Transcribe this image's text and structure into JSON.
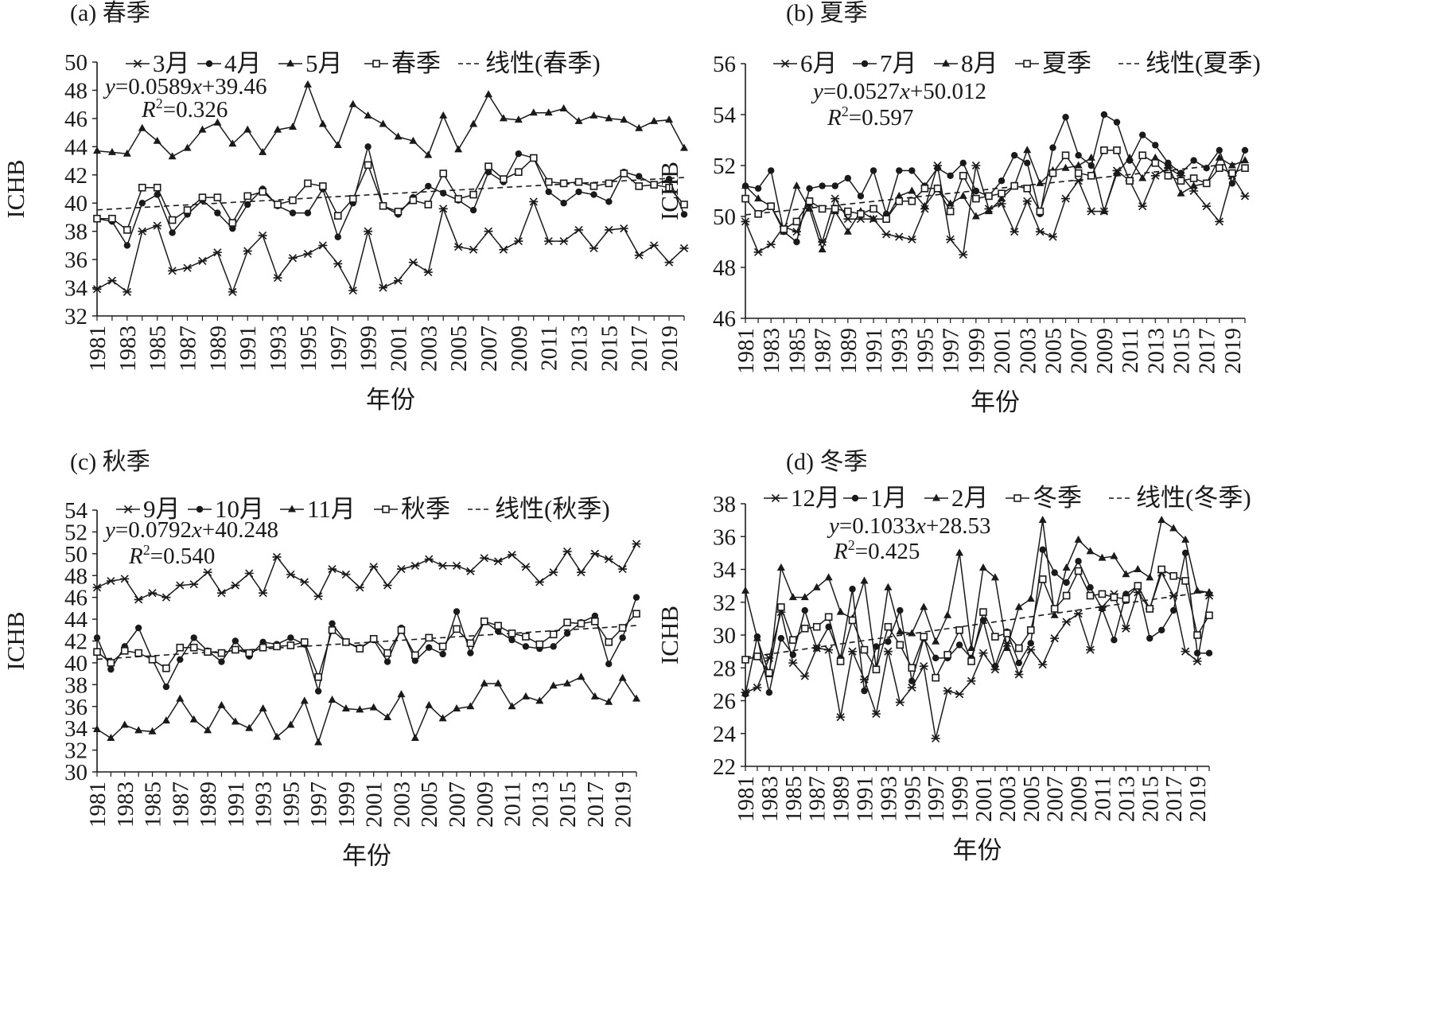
{
  "chart_data": [
    {
      "panel_title": "(a) 春季",
      "type": "line",
      "xlabel": "年份",
      "ylabel": "ICHB",
      "ylim": [
        32,
        50
      ],
      "yticks": [
        32,
        34,
        36,
        38,
        40,
        42,
        44,
        46,
        48,
        50
      ],
      "xtick_labels": [
        "1981",
        "1983",
        "1985",
        "1987",
        "1989",
        "1991",
        "1993",
        "1995",
        "1997",
        "1999",
        "2001",
        "2003",
        "2005",
        "2007",
        "2009",
        "2011",
        "2013",
        "2015",
        "2017",
        "2019"
      ],
      "x": [
        1981,
        1982,
        1983,
        1984,
        1985,
        1986,
        1987,
        1988,
        1989,
        1990,
        1991,
        1992,
        1993,
        1994,
        1995,
        1996,
        1997,
        1998,
        1999,
        2000,
        2001,
        2002,
        2003,
        2004,
        2005,
        2006,
        2007,
        2008,
        2009,
        2010,
        2011,
        2012,
        2013,
        2014,
        2015,
        2016,
        2017,
        2018,
        2019,
        2020
      ],
      "series": [
        {
          "name": "3月",
          "marker": "star",
          "values": [
            33.9,
            34.5,
            33.7,
            38.0,
            38.4,
            35.2,
            35.4,
            35.9,
            36.5,
            33.7,
            36.6,
            37.7,
            34.7,
            36.1,
            36.4,
            37.0,
            35.7,
            33.8,
            38.0,
            34.0,
            34.5,
            35.8,
            35.1,
            39.6,
            36.9,
            36.7,
            38.0,
            36.7,
            37.3,
            40.1,
            37.3,
            37.3,
            38.1,
            36.8,
            38.1,
            38.2,
            36.3,
            37.0,
            35.8,
            36.8
          ]
        },
        {
          "name": "4月",
          "marker": "circle",
          "values": [
            38.9,
            38.7,
            37.0,
            40.0,
            40.6,
            37.9,
            39.2,
            40.2,
            39.3,
            38.2,
            39.9,
            41.0,
            39.8,
            39.3,
            39.3,
            41.0,
            37.6,
            40.0,
            44.0,
            39.8,
            39.2,
            40.4,
            41.2,
            40.7,
            40.2,
            39.5,
            42.2,
            41.5,
            43.5,
            43.2,
            40.8,
            40.0,
            40.8,
            40.6,
            40.1,
            42.2,
            41.9,
            41.3,
            41.7,
            39.2
          ]
        },
        {
          "name": "5月",
          "marker": "triangle",
          "values": [
            43.7,
            43.6,
            43.5,
            45.3,
            44.4,
            43.3,
            43.9,
            45.2,
            45.7,
            44.2,
            45.2,
            43.6,
            45.2,
            45.4,
            48.4,
            45.6,
            44.1,
            47.0,
            46.2,
            45.6,
            44.7,
            44.4,
            43.4,
            46.2,
            43.8,
            45.6,
            47.7,
            46.0,
            45.9,
            46.4,
            46.4,
            46.7,
            45.8,
            46.2,
            46.0,
            45.9,
            45.3,
            45.8,
            45.9,
            43.9
          ]
        },
        {
          "name": "春季",
          "marker": "square",
          "values": [
            38.9,
            38.9,
            38.1,
            41.1,
            41.1,
            38.8,
            39.5,
            40.4,
            40.4,
            38.6,
            40.5,
            40.8,
            39.9,
            40.2,
            41.4,
            41.2,
            39.1,
            40.3,
            42.7,
            39.8,
            39.4,
            40.2,
            39.9,
            42.1,
            40.3,
            40.6,
            42.6,
            41.7,
            42.2,
            43.2,
            41.5,
            41.4,
            41.5,
            41.2,
            41.4,
            42.1,
            41.2,
            41.3,
            41.1,
            39.9
          ]
        }
      ],
      "trend": {
        "name": "线性(春季)",
        "slope": 0.0589,
        "intercept": 39.46
      },
      "equation": {
        "y": "y",
        "rest": "=0.0589",
        "x": "x",
        "tail": "+39.46"
      },
      "r2": {
        "r": "R",
        "sup": "2",
        "value": "=0.326"
      }
    },
    {
      "panel_title": "(b) 夏季",
      "type": "line",
      "xlabel": "年份",
      "ylabel": "ICHB",
      "ylim": [
        46,
        56
      ],
      "yticks": [
        46,
        48,
        50,
        52,
        54,
        56
      ],
      "xtick_labels": [
        "1981",
        "1983",
        "1985",
        "1987",
        "1989",
        "1991",
        "1993",
        "1995",
        "1997",
        "1999",
        "2001",
        "2003",
        "2005",
        "2007",
        "2009",
        "2011",
        "2013",
        "2015",
        "2017",
        "2019"
      ],
      "x": [
        1981,
        1982,
        1983,
        1984,
        1985,
        1986,
        1987,
        1988,
        1989,
        1990,
        1991,
        1992,
        1993,
        1994,
        1995,
        1996,
        1997,
        1998,
        1999,
        2000,
        2001,
        2002,
        2003,
        2004,
        2005,
        2006,
        2007,
        2008,
        2009,
        2010,
        2011,
        2012,
        2013,
        2014,
        2015,
        2016,
        2017,
        2018,
        2019,
        2020
      ],
      "series": [
        {
          "name": "6月",
          "marker": "star",
          "values": [
            49.8,
            48.6,
            48.9,
            49.6,
            49.4,
            50.5,
            49.0,
            50.7,
            49.9,
            49.9,
            49.9,
            49.3,
            49.2,
            49.1,
            50.3,
            52.0,
            49.1,
            48.5,
            52.0,
            50.3,
            50.5,
            49.4,
            50.6,
            49.4,
            49.2,
            50.7,
            51.4,
            50.2,
            50.2,
            51.8,
            51.4,
            50.4,
            51.6,
            51.9,
            51.6,
            51.0,
            50.4,
            49.8,
            51.6,
            50.8
          ]
        },
        {
          "name": "7月",
          "marker": "circle",
          "values": [
            51.2,
            51.1,
            51.8,
            49.4,
            49.0,
            51.1,
            51.2,
            51.2,
            51.5,
            50.8,
            51.8,
            50.1,
            51.8,
            51.8,
            51.2,
            51.9,
            51.6,
            52.1,
            51.0,
            50.8,
            51.4,
            52.4,
            52.1,
            50.1,
            52.7,
            53.9,
            52.4,
            52.0,
            54.0,
            53.7,
            52.2,
            53.2,
            52.8,
            52.1,
            51.7,
            52.2,
            51.9,
            52.6,
            51.3,
            52.6
          ]
        },
        {
          "name": "8月",
          "marker": "triangle",
          "values": [
            51.2,
            50.7,
            50.4,
            49.4,
            51.2,
            50.3,
            48.7,
            50.2,
            49.4,
            50.2,
            49.9,
            49.9,
            50.8,
            51.0,
            50.4,
            51.1,
            50.5,
            50.8,
            50.0,
            50.2,
            50.7,
            51.2,
            52.6,
            51.3,
            51.8,
            51.9,
            52.0,
            52.3,
            50.2,
            51.7,
            52.3,
            51.5,
            52.3,
            52.0,
            50.9,
            51.2,
            51.3,
            52.3,
            52.0,
            52.2
          ]
        },
        {
          "name": "夏季",
          "marker": "square",
          "values": [
            50.7,
            50.1,
            50.4,
            49.5,
            49.8,
            50.6,
            50.3,
            50.3,
            50.2,
            50.1,
            50.3,
            49.9,
            50.6,
            50.6,
            51.1,
            51.1,
            50.2,
            51.6,
            50.7,
            50.8,
            50.9,
            51.2,
            51.1,
            50.2,
            51.7,
            52.4,
            51.7,
            51.6,
            52.6,
            52.6,
            51.4,
            52.4,
            52.1,
            51.6,
            51.4,
            51.5,
            51.3,
            51.9,
            51.7,
            51.9
          ]
        }
      ],
      "trend": {
        "name": "线性(夏季)",
        "slope": 0.0527,
        "intercept": 50.012
      },
      "equation": {
        "y": "y",
        "rest": "=0.0527",
        "x": "x",
        "tail": "+50.012"
      },
      "r2": {
        "r": "R",
        "sup": "2",
        "value": "=0.597"
      }
    },
    {
      "panel_title": "(c) 秋季",
      "type": "line",
      "xlabel": "年份",
      "ylabel": "ICHB",
      "ylim": [
        30,
        54
      ],
      "yticks": [
        30,
        32,
        34,
        36,
        38,
        40,
        42,
        44,
        46,
        48,
        50,
        52,
        54
      ],
      "xtick_labels": [
        "1981",
        "1983",
        "1985",
        "1987",
        "1989",
        "1991",
        "1993",
        "1995",
        "1997",
        "1999",
        "2001",
        "2003",
        "2005",
        "2007",
        "2009",
        "2011",
        "2013",
        "2015",
        "2017",
        "2019"
      ],
      "x": [
        1981,
        1982,
        1983,
        1984,
        1985,
        1986,
        1987,
        1988,
        1989,
        1990,
        1991,
        1992,
        1993,
        1994,
        1995,
        1996,
        1997,
        1998,
        1999,
        2000,
        2001,
        2002,
        2003,
        2004,
        2005,
        2006,
        2007,
        2008,
        2009,
        2010,
        2011,
        2012,
        2013,
        2014,
        2015,
        2016,
        2017,
        2018,
        2019,
        2020
      ],
      "series": [
        {
          "name": "9月",
          "marker": "star",
          "values": [
            46.9,
            47.5,
            47.7,
            45.8,
            46.4,
            46.0,
            47.1,
            47.2,
            48.3,
            46.4,
            47.1,
            48.2,
            46.4,
            49.7,
            48.1,
            47.4,
            46.1,
            48.6,
            48.1,
            46.9,
            48.8,
            47.1,
            48.6,
            48.9,
            49.5,
            48.9,
            48.9,
            48.4,
            49.6,
            49.3,
            49.9,
            48.8,
            47.4,
            48.3,
            50.2,
            48.3,
            50.0,
            49.5,
            48.6,
            50.9
          ]
        },
        {
          "name": "10月",
          "marker": "circle",
          "values": [
            42.3,
            39.4,
            41.5,
            43.2,
            40.3,
            37.8,
            40.3,
            42.3,
            41.1,
            40.1,
            42.0,
            40.6,
            41.9,
            41.7,
            42.3,
            41.7,
            37.4,
            43.6,
            41.9,
            41.4,
            42.1,
            40.1,
            43.2,
            40.2,
            41.4,
            40.8,
            44.7,
            40.9,
            43.8,
            42.9,
            42.1,
            41.5,
            41.3,
            41.5,
            42.7,
            43.7,
            44.3,
            39.9,
            42.3,
            46.0
          ]
        },
        {
          "name": "11月",
          "marker": "triangle",
          "values": [
            33.9,
            33.1,
            34.3,
            33.8,
            33.7,
            34.7,
            36.7,
            34.8,
            33.8,
            36.1,
            34.6,
            34.0,
            35.8,
            33.2,
            34.3,
            36.5,
            32.7,
            36.6,
            35.8,
            35.7,
            35.9,
            35.0,
            37.1,
            33.1,
            36.1,
            34.9,
            35.8,
            36.0,
            38.1,
            38.1,
            36.0,
            36.9,
            36.5,
            37.9,
            38.1,
            38.7,
            36.9,
            36.4,
            38.6,
            36.7
          ]
        },
        {
          "name": "秋季",
          "marker": "square",
          "values": [
            41.0,
            40.0,
            41.1,
            40.9,
            40.3,
            39.5,
            41.4,
            41.4,
            41.0,
            40.9,
            41.2,
            40.9,
            41.4,
            41.5,
            41.6,
            41.9,
            38.7,
            43.0,
            41.9,
            41.3,
            42.2,
            40.9,
            43.0,
            40.7,
            42.3,
            41.5,
            43.1,
            41.8,
            43.8,
            43.4,
            42.7,
            42.4,
            41.7,
            42.6,
            43.7,
            43.6,
            43.8,
            41.9,
            43.2,
            44.5
          ]
        }
      ],
      "trend": {
        "name": "线性(秋季)",
        "slope": 0.0792,
        "intercept": 40.248
      },
      "equation": {
        "y": "y",
        "rest": "=0.0792",
        "x": "x",
        "tail": "+40.248"
      },
      "r2": {
        "r": "R",
        "sup": "2",
        "value": "=0.540"
      }
    },
    {
      "panel_title": "(d) 冬季",
      "type": "line",
      "xlabel": "年份",
      "ylabel": "ICHB",
      "ylim": [
        22,
        38
      ],
      "yticks": [
        22,
        24,
        26,
        28,
        30,
        32,
        34,
        36,
        38
      ],
      "xtick_labels": [
        "1981",
        "1983",
        "1985",
        "1987",
        "1989",
        "1991",
        "1993",
        "1995",
        "1997",
        "1999",
        "2001",
        "2003",
        "2005",
        "2007",
        "2009",
        "2011",
        "2013",
        "2015",
        "2017",
        "2019"
      ],
      "x": [
        1981,
        1982,
        1983,
        1984,
        1985,
        1986,
        1987,
        1988,
        1989,
        1990,
        1991,
        1992,
        1993,
        1994,
        1995,
        1996,
        1997,
        1998,
        1999,
        2000,
        2001,
        2002,
        2003,
        2004,
        2005,
        2006,
        2007,
        2008,
        2009,
        2010,
        2011,
        2012,
        2013,
        2014,
        2015,
        2016,
        2017,
        2018,
        2019,
        2020
      ],
      "series": [
        {
          "name": "12月",
          "marker": "star",
          "values": [
            26.5,
            26.8,
            28.6,
            31.4,
            28.3,
            27.5,
            29.2,
            29.1,
            25.0,
            29.0,
            27.3,
            25.2,
            29.0,
            25.9,
            26.8,
            28.1,
            23.7,
            26.6,
            26.4,
            27.2,
            28.9,
            27.9,
            29.5,
            27.6,
            29.1,
            28.2,
            29.8,
            30.8,
            31.3,
            29.1,
            31.7,
            32.5,
            30.4,
            32.6,
            31.6,
            33.8,
            32.4,
            29.0,
            28.4,
            32.4
          ]
        },
        {
          "name": "1月",
          "marker": "circle",
          "values": [
            26.4,
            29.9,
            26.5,
            29.8,
            28.8,
            31.5,
            29.2,
            30.5,
            28.6,
            32.8,
            26.6,
            29.3,
            29.6,
            31.5,
            27.2,
            29.8,
            28.6,
            28.6,
            29.4,
            28.6,
            30.9,
            28.1,
            30.2,
            28.3,
            29.5,
            35.2,
            33.8,
            33.2,
            34.5,
            32.9,
            31.6,
            29.7,
            32.5,
            33.0,
            29.8,
            30.3,
            31.5,
            35.0,
            28.9,
            28.9
          ]
        },
        {
          "name": "2月",
          "marker": "triangle",
          "values": [
            32.7,
            29.8,
            27.6,
            34.1,
            32.3,
            32.3,
            32.9,
            33.5,
            31.4,
            31.0,
            33.3,
            28.0,
            32.9,
            30.2,
            30.1,
            31.7,
            29.6,
            31.2,
            35.0,
            29.2,
            34.1,
            33.5,
            29.2,
            31.7,
            32.2,
            37.0,
            31.2,
            34.1,
            35.8,
            35.1,
            34.7,
            34.8,
            33.7,
            34.0,
            33.5,
            37.0,
            36.5,
            35.8,
            32.7,
            32.6
          ]
        },
        {
          "name": "冬季",
          "marker": "square",
          "values": [
            28.5,
            28.7,
            27.7,
            31.7,
            29.7,
            30.4,
            30.5,
            31.1,
            28.4,
            30.9,
            29.1,
            27.9,
            30.5,
            29.4,
            28.0,
            29.9,
            27.4,
            28.8,
            30.3,
            28.4,
            31.4,
            29.9,
            30.1,
            29.2,
            30.3,
            33.4,
            31.6,
            32.4,
            33.9,
            32.4,
            32.5,
            32.3,
            32.2,
            33.0,
            31.6,
            34.0,
            33.6,
            33.3,
            30.0,
            31.2
          ]
        }
      ],
      "trend": {
        "name": "线性(冬季)",
        "slope": 0.1033,
        "intercept": 28.53
      },
      "equation": {
        "y": "y",
        "rest": "=0.1033",
        "x": "x",
        "tail": "+28.53"
      },
      "r2": {
        "r": "R",
        "sup": "2",
        "value": "=0.425"
      }
    }
  ]
}
